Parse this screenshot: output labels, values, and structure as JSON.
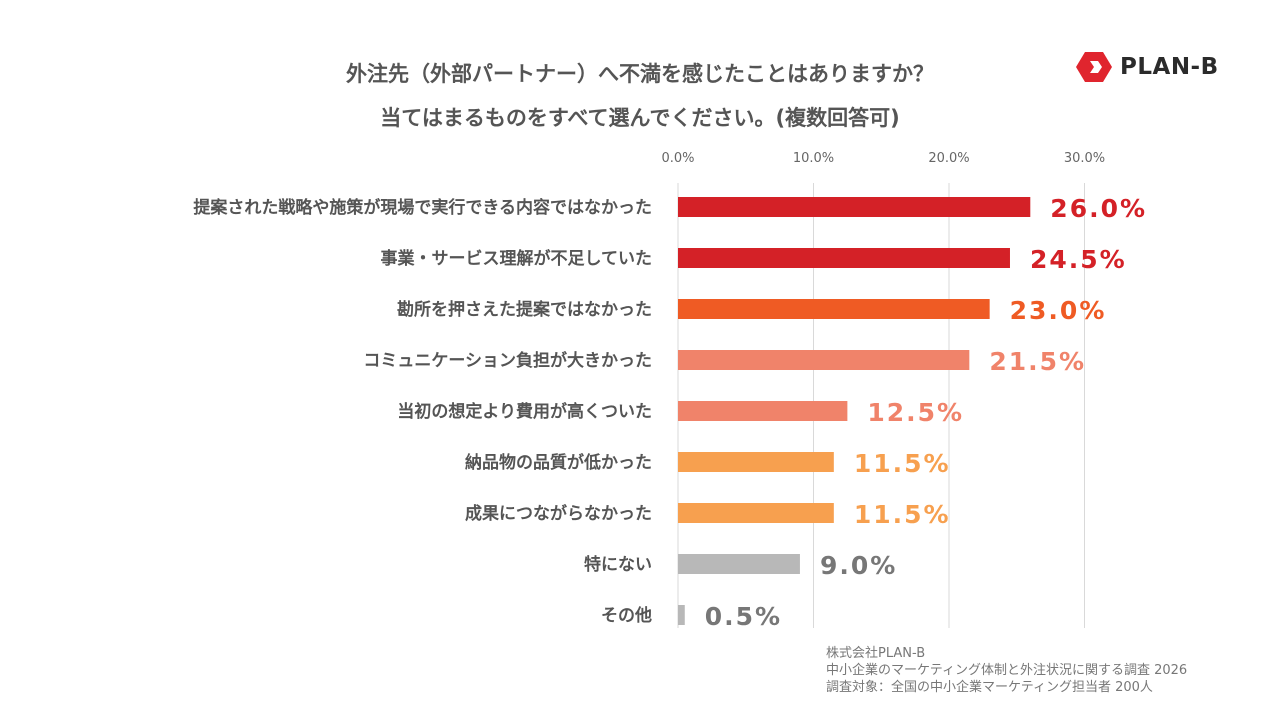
{
  "title": {
    "line1": "外注先（外部パートナー）へ不満を感じたことはありますか？",
    "line2": "当てはまるものをすべて選んでください。(複数回答可)"
  },
  "logo": {
    "text": "PLAN-B",
    "color": "#e0252e"
  },
  "source": {
    "line1": "株式会社PLAN-B",
    "line2": "中小企業のマーケティング体制と外注状況に関する調査 2026",
    "line3": "調査対象：全国の中小企業マーケティング担当者 200人"
  },
  "chart_data": {
    "type": "bar",
    "orientation": "horizontal",
    "xlim": [
      0,
      30
    ],
    "ticks": [
      "0.0%",
      "10.0%",
      "20.0%",
      "30.0%"
    ],
    "tick_values": [
      0,
      10,
      20,
      30
    ],
    "grid": true,
    "categories": [
      "提案された戦略や施策が現場で実行できる内容ではなかった",
      "事業・サービス理解が不足していた",
      "勘所を押さえた提案ではなかった",
      "コミュニケーション負担が大きかった",
      "当初の想定より費用が高くついた",
      "納品物の品質が低かった",
      "成果につながらなかった",
      "特にない",
      "その他"
    ],
    "values": [
      26.0,
      24.5,
      23.0,
      21.5,
      12.5,
      11.5,
      11.5,
      9.0,
      0.5
    ],
    "labels": [
      "26.0%",
      "24.5%",
      "23.0%",
      "21.5%",
      "12.5%",
      "11.5%",
      "11.5%",
      "9.0%",
      "0.5%"
    ],
    "colors": [
      "#d42127",
      "#d42127",
      "#ef5b24",
      "#f0836a",
      "#f0836a",
      "#f7a04f",
      "#f7a04f",
      "#b8b8b8",
      "#b8b8b8"
    ]
  }
}
